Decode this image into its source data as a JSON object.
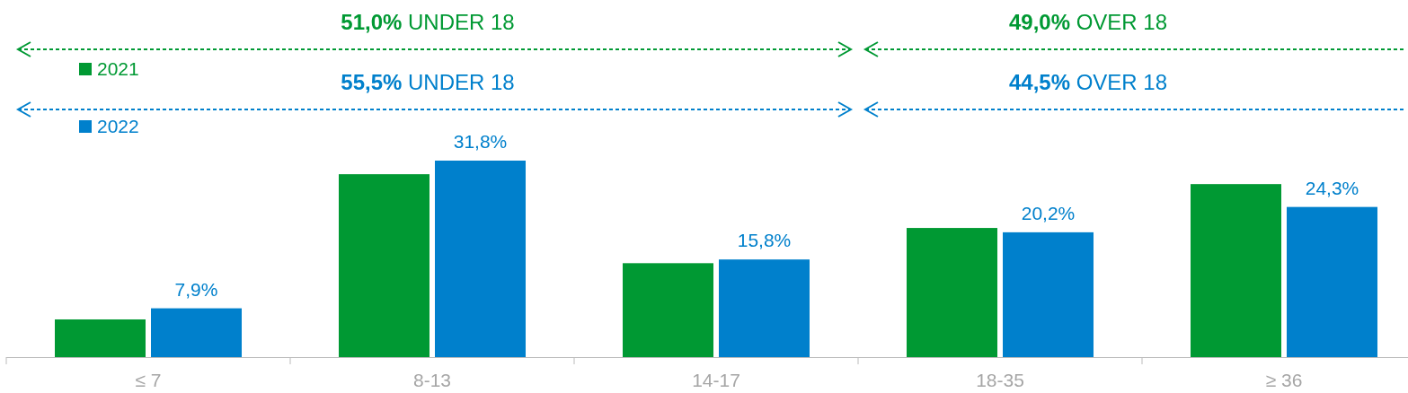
{
  "chart_data": {
    "type": "bar",
    "categories": [
      "≤ 7",
      "8-13",
      "14-17",
      "18-35",
      "≥ 36"
    ],
    "series": [
      {
        "name": "2021",
        "color": "#009933",
        "values": [
          6.1,
          29.6,
          15.2,
          20.9,
          28.0
        ]
      },
      {
        "name": "2022",
        "color": "#0080cc",
        "values": [
          7.9,
          31.8,
          15.8,
          20.2,
          24.3
        ],
        "value_labels": [
          "7,9%",
          "31,8%",
          "15,8%",
          "20,2%",
          "24,3%"
        ]
      }
    ],
    "annotations": [
      "51,0% UNDER 18",
      "49,0% OVER 18",
      "55,5% UNDER 18",
      "44,5% OVER 18"
    ],
    "legend": "top left"
  }
}
